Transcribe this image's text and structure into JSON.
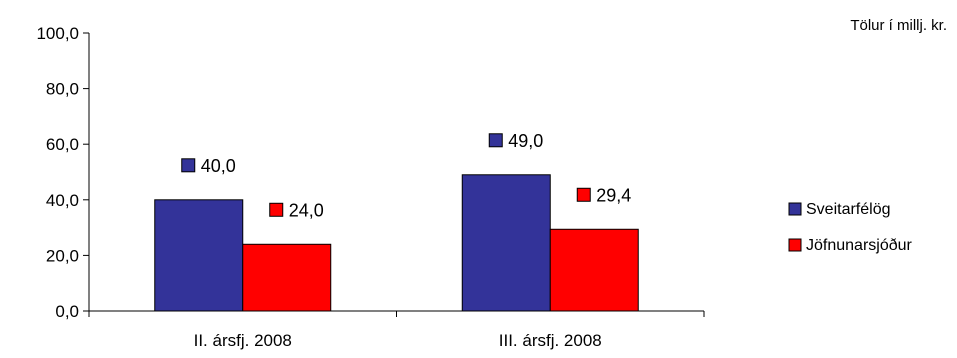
{
  "chart_data": {
    "type": "bar",
    "units_note": "Tölur í millj. kr.",
    "categories": [
      "II. ársfj. 2008",
      "III. ársfj. 2008"
    ],
    "series": [
      {
        "name": "Sveitarfélög",
        "color": "#333399",
        "values": [
          40.0,
          49.0
        ],
        "labels": [
          "40,0",
          "49,0"
        ]
      },
      {
        "name": "Jöfnunarsjóður",
        "color": "#FF0000",
        "values": [
          24.0,
          29.4
        ],
        "labels": [
          "24,0",
          "29,4"
        ]
      }
    ],
    "ylim": [
      0,
      100
    ],
    "yticks": [
      0,
      20,
      40,
      60,
      80,
      100
    ],
    "ytick_labels": [
      "0,0",
      "20,0",
      "40,0",
      "60,0",
      "80,0",
      "100,0"
    ],
    "legend_position": "right",
    "grid": false
  }
}
